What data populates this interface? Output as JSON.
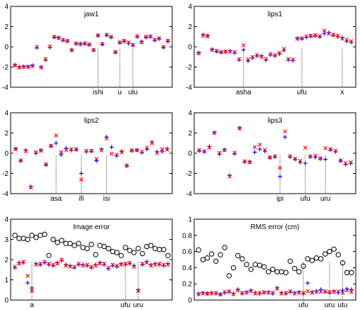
{
  "chart_data": [
    {
      "type": "scatter",
      "title": "jaw1",
      "ylim": [
        -4,
        4
      ],
      "yticks": [
        "-4",
        "-2",
        "0",
        "2",
        "4"
      ],
      "series": [
        {
          "marker": "plus",
          "color": "#0000ff",
          "values": [
            -1.8,
            -2.0,
            -1.95,
            -1.95,
            -1.85,
            -0.1,
            -2.0,
            -1.3,
            -0.05,
            0.95,
            0.9,
            0.65,
            0.55,
            -0.3,
            0.3,
            0.3,
            0.3,
            0.2,
            -0.35,
            1.1,
            0.25,
            1.15,
            0.95,
            -0.55,
            0.4,
            0.55,
            0.35,
            0.15,
            1.0,
            0.5,
            0.95,
            1.0,
            0.65,
            0.8,
            -0.05,
            0.55
          ]
        },
        {
          "marker": "cross",
          "color": "#ff0000",
          "values": [
            -1.85,
            -2.05,
            -2.0,
            -2.0,
            -1.9,
            0.0,
            -2.05,
            -1.2,
            0.05,
            1.0,
            0.85,
            0.7,
            0.6,
            -0.35,
            0.35,
            0.25,
            0.35,
            0.25,
            -0.3,
            1.15,
            0.3,
            1.2,
            1.0,
            -0.5,
            0.45,
            0.6,
            0.45,
            0.2,
            1.05,
            0.45,
            1.0,
            1.05,
            0.7,
            0.85,
            0.0,
            0.6
          ]
        }
      ],
      "annotations": [
        {
          "label": "ishi",
          "at": 19
        },
        {
          "label": "u",
          "at": 24
        },
        {
          "label": "ulu",
          "at": 27
        }
      ]
    },
    {
      "type": "scatter",
      "title": "lips1",
      "ylim": [
        -4,
        4
      ],
      "yticks": [
        "-4",
        "-2",
        "0",
        "2",
        "4"
      ],
      "series": [
        {
          "marker": "plus",
          "color": "#0000ff",
          "values": [
            -0.6,
            1.2,
            1.1,
            -0.25,
            -0.45,
            -0.55,
            -0.5,
            -0.4,
            -0.6,
            -1.3,
            -0.3,
            -1.4,
            -1.1,
            -0.9,
            -0.9,
            -1.3,
            -0.8,
            -0.9,
            -0.7,
            -0.35,
            -1.3,
            -1.35,
            0.85,
            0.8,
            0.95,
            1.05,
            1.1,
            1.0,
            1.3,
            1.4,
            1.15,
            1.0,
            0.9,
            0.55,
            0.45
          ]
        },
        {
          "marker": "cross",
          "color": "#ff0000",
          "values": [
            -0.65,
            1.1,
            1.05,
            -0.3,
            -0.4,
            -0.5,
            -0.45,
            -0.5,
            -0.5,
            -1.2,
            0.15,
            -1.25,
            -1.0,
            -0.8,
            -1.0,
            -1.2,
            -0.7,
            -0.8,
            -0.6,
            -0.2,
            -1.2,
            -1.25,
            0.8,
            0.85,
            1.05,
            1.1,
            1.15,
            1.05,
            1.6,
            1.3,
            1.2,
            1.1,
            0.8,
            0.7,
            0.55
          ]
        }
      ],
      "annotations": [
        {
          "label": "asha",
          "at": 10
        },
        {
          "label": "ufu",
          "at": 23
        },
        {
          "label": "x",
          "at": 32
        }
      ]
    },
    {
      "type": "scatter",
      "title": "lips2",
      "ylim": [
        -4,
        4
      ],
      "yticks": [
        "-4",
        "-2",
        "0",
        "2",
        "4"
      ],
      "series": [
        {
          "marker": "plus",
          "color": "#0000ff",
          "values": [
            0.45,
            -0.75,
            0.3,
            -3.3,
            0.0,
            0.3,
            -1.15,
            0.7,
            1.0,
            -0.15,
            0.5,
            0.3,
            0.35,
            -2.0,
            0.15,
            0.2,
            -0.75,
            0.4,
            1.6,
            0.6,
            -0.25,
            0.2,
            -1.25,
            0.25,
            0.3,
            0.05,
            0.4,
            1.1,
            0.15,
            0.15,
            0.45
          ]
        },
        {
          "marker": "cross",
          "color": "#ff0000",
          "values": [
            0.4,
            -0.7,
            0.2,
            -3.4,
            0.1,
            0.25,
            -1.1,
            0.75,
            1.75,
            0.1,
            0.3,
            0.4,
            0.4,
            -2.6,
            0.25,
            0.25,
            -0.55,
            0.3,
            1.45,
            -0.05,
            -0.15,
            0.1,
            -1.2,
            0.3,
            0.3,
            0.15,
            0.55,
            1.0,
            0.0,
            0.4,
            0.35
          ]
        }
      ],
      "annotations": [
        {
          "label": "asa",
          "at": 8
        },
        {
          "label": "ifi",
          "at": 13
        },
        {
          "label": "isi",
          "at": 18
        }
      ]
    },
    {
      "type": "scatter",
      "title": "lips3",
      "ylim": [
        -4,
        4
      ],
      "yticks": [
        "-4",
        "-2",
        "0",
        "2",
        "4"
      ],
      "series": [
        {
          "marker": "plus",
          "color": "#0000ff",
          "values": [
            0.25,
            0.15,
            0.65,
            2.05,
            -0.1,
            0.35,
            -2.2,
            -0.05,
            2.5,
            -0.85,
            -0.85,
            0.1,
            0.4,
            0.2,
            -0.45,
            -0.35,
            -2.3,
            1.6,
            -0.35,
            -0.6,
            -0.9,
            -1.0,
            -0.35,
            -0.4,
            -0.55,
            -0.6,
            0.35,
            0.15,
            -0.75,
            -1.1,
            -1.0
          ]
        },
        {
          "marker": "cross",
          "color": "#ff0000",
          "values": [
            0.3,
            0.2,
            0.55,
            2.0,
            0.05,
            0.3,
            -2.3,
            0.05,
            2.45,
            -0.8,
            -0.9,
            0.6,
            0.85,
            0.35,
            -0.4,
            -0.3,
            -1.45,
            2.15,
            -0.3,
            -0.55,
            -0.75,
            0.55,
            -0.3,
            -0.25,
            -0.5,
            0.5,
            0.4,
            0.25,
            -0.7,
            -1.0,
            -0.9
          ]
        }
      ],
      "annotations": [
        {
          "label": "ipi",
          "at": 16
        },
        {
          "label": "ufu",
          "at": 21
        },
        {
          "label": "uru",
          "at": 25
        }
      ]
    },
    {
      "type": "scatter",
      "title": "Image error",
      "ylim": [
        0,
        4
      ],
      "yticks": [
        "0",
        "1",
        "2",
        "3",
        "4"
      ],
      "series": [
        {
          "marker": "plus",
          "color": "#0000ff",
          "values": [
            1.6,
            1.85,
            1.85,
            0.85,
            0.6,
            1.8,
            1.75,
            1.85,
            1.75,
            1.7,
            1.85,
            1.95,
            1.75,
            1.7,
            1.6,
            1.75,
            1.75,
            1.7,
            1.6,
            1.75,
            1.85,
            1.75,
            1.55,
            1.7,
            1.65,
            1.8,
            1.75,
            1.8,
            1.7,
            0.5,
            1.75,
            1.9,
            1.75,
            1.8,
            1.75,
            1.7,
            1.8
          ]
        },
        {
          "marker": "cross",
          "color": "#ff0000",
          "values": [
            1.65,
            1.8,
            1.9,
            1.2,
            0.45,
            1.75,
            1.8,
            1.9,
            1.8,
            1.75,
            1.8,
            2.0,
            1.7,
            1.65,
            1.65,
            1.8,
            1.7,
            1.75,
            1.65,
            1.7,
            1.8,
            1.8,
            1.6,
            1.75,
            1.7,
            1.75,
            1.8,
            1.85,
            1.65,
            0.45,
            1.8,
            1.85,
            1.7,
            1.75,
            1.8,
            1.75,
            1.75
          ]
        },
        {
          "marker": "circle",
          "color": "#000000",
          "values": [
            3.2,
            3.05,
            3.05,
            3.0,
            3.2,
            3.1,
            3.2,
            3.25,
            2.2,
            3.0,
            2.85,
            2.95,
            2.8,
            2.8,
            2.7,
            2.8,
            2.6,
            2.55,
            2.75,
            2.25,
            2.7,
            2.65,
            2.55,
            2.4,
            2.35,
            2.2,
            2.6,
            2.45,
            2.35,
            2.55,
            2.3,
            2.65,
            2.7,
            2.55,
            2.5,
            2.5,
            2.2
          ]
        }
      ],
      "annotations": [
        {
          "label": "a",
          "at": 4
        },
        {
          "label": "ufu",
          "at": 26
        },
        {
          "label": "uru",
          "at": 29
        }
      ]
    },
    {
      "type": "scatter",
      "title": "RMS error (cm)",
      "ylim": [
        0,
        1
      ],
      "yticks": [
        "0",
        "0.2",
        "0.4",
        "0.6",
        "0.8",
        "1"
      ],
      "series": [
        {
          "marker": "plus",
          "color": "#0000ff",
          "values": [
            0.08,
            0.09,
            0.08,
            0.09,
            0.08,
            0.07,
            0.09,
            0.1,
            0.08,
            0.13,
            0.08,
            0.1,
            0.12,
            0.09,
            0.08,
            0.09,
            0.1,
            0.08,
            0.15,
            0.09,
            0.08,
            0.1,
            0.09,
            0.1,
            0.08,
            0.21,
            0.1,
            0.11,
            0.13,
            0.1,
            0.09,
            0.11,
            0.09,
            0.12,
            0.14,
            0.13
          ]
        },
        {
          "marker": "cross",
          "color": "#ff0000",
          "values": [
            0.07,
            0.08,
            0.08,
            0.08,
            0.09,
            0.07,
            0.1,
            0.11,
            0.07,
            0.12,
            0.09,
            0.09,
            0.11,
            0.08,
            0.09,
            0.1,
            0.09,
            0.09,
            0.14,
            0.08,
            0.09,
            0.11,
            0.08,
            0.09,
            0.09,
            0.11,
            0.09,
            0.1,
            0.1,
            0.11,
            0.1,
            0.1,
            0.11,
            0.09,
            0.12,
            0.1
          ]
        },
        {
          "marker": "circle",
          "color": "#000000",
          "values": [
            0.62,
            0.5,
            0.52,
            0.57,
            0.48,
            0.56,
            0.65,
            0.3,
            0.4,
            0.55,
            0.51,
            0.44,
            0.38,
            0.44,
            0.43,
            0.41,
            0.35,
            0.38,
            0.35,
            0.35,
            0.34,
            0.48,
            0.39,
            0.35,
            0.42,
            0.51,
            0.49,
            0.52,
            0.51,
            0.57,
            0.6,
            0.63,
            0.56,
            0.46,
            0.34,
            0.34
          ]
        }
      ],
      "annotations": [
        {
          "label": "ufu",
          "at": 24
        },
        {
          "label": "uru",
          "at": 30
        },
        {
          "label": "utu",
          "at": 33
        }
      ]
    }
  ]
}
